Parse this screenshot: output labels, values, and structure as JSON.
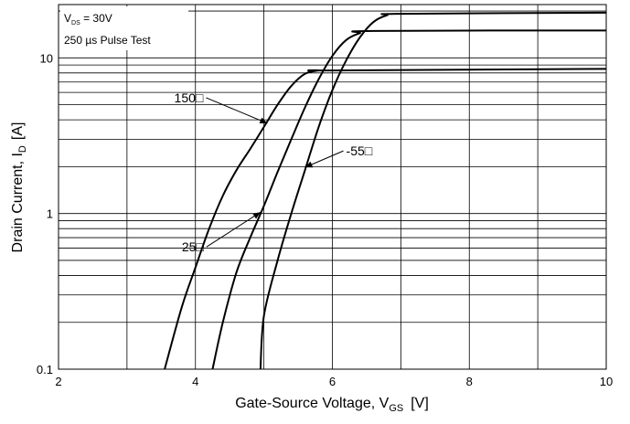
{
  "chart_data": {
    "type": "line",
    "title": "",
    "xlabel": {
      "text": "Gate-Source Voltage, V",
      "sub": "GS",
      "unit": "[V]"
    },
    "ylabel": {
      "text": "Drain Current, I",
      "sub": "D",
      "unit": "[A]"
    },
    "xlim": [
      2,
      10
    ],
    "ylim": [
      0.1,
      22
    ],
    "yscale": "log",
    "grid": true,
    "x_ticks": [
      2,
      4,
      6,
      8,
      10
    ],
    "x_tick_labels": [
      "2",
      "4",
      "6",
      "8",
      "10"
    ],
    "y_ticks": [
      0.1,
      1,
      10
    ],
    "y_tick_labels": [
      "0.1",
      "1",
      "10"
    ],
    "conditions": {
      "line1_main": "V",
      "line1_sub": "DS",
      "line1_rest": " = 30V",
      "line2": "250 µs Pulse Test"
    },
    "series": [
      {
        "name": "150□",
        "x": [
          3.55,
          3.8,
          4.0,
          4.2,
          4.4,
          4.6,
          4.8,
          5.0,
          5.2,
          5.4,
          5.6,
          5.8,
          6.0,
          10.0
        ],
        "y": [
          0.1,
          0.25,
          0.45,
          0.8,
          1.3,
          1.9,
          2.6,
          3.6,
          5.0,
          6.6,
          7.9,
          8.3,
          8.3,
          8.5
        ]
      },
      {
        "name": "25□",
        "x": [
          4.25,
          4.4,
          4.6,
          4.8,
          5.0,
          5.2,
          5.4,
          5.6,
          5.8,
          6.0,
          6.2,
          6.4,
          6.6,
          10.0
        ],
        "y": [
          0.1,
          0.2,
          0.42,
          0.7,
          1.12,
          1.85,
          3.0,
          4.8,
          7.3,
          10.3,
          13.0,
          14.4,
          14.9,
          15.0
        ]
      },
      {
        "name": "-55□",
        "x": [
          4.95,
          5.0,
          5.2,
          5.4,
          5.6,
          5.8,
          6.0,
          6.2,
          6.4,
          6.6,
          6.8,
          7.0,
          10.0
        ],
        "y": [
          0.1,
          0.22,
          0.5,
          1.0,
          1.9,
          3.6,
          6.2,
          9.6,
          13.5,
          17.0,
          18.8,
          19.2,
          19.5
        ]
      }
    ],
    "annotations": [
      {
        "label": "150□",
        "series": 0,
        "x": 5.05,
        "y": 3.8
      },
      {
        "label": "25□",
        "series": 1,
        "x": 4.95,
        "y": 1.02
      },
      {
        "label": "-55□",
        "series": 2,
        "x": 5.6,
        "y": 1.98
      }
    ]
  }
}
